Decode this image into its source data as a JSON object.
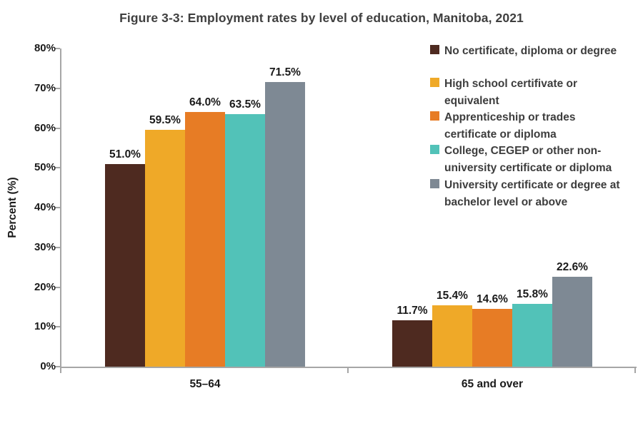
{
  "title": "Figure 3-3: Employment rates by level of education, Manitoba, 2021",
  "chart_data": {
    "type": "bar",
    "title": "Figure 3-3: Employment rates by level of education, Manitoba, 2021",
    "categories": [
      "55–64",
      "65 and over"
    ],
    "series": [
      {
        "name": "No certificate, diploma or degree",
        "legend_lines": [
          "No certificate, diploma or degree"
        ],
        "color": "#4e2a20",
        "values": [
          51.0,
          11.7
        ],
        "value_labels": [
          "51.0%",
          "11.7%"
        ]
      },
      {
        "name": "High school certifivate or equivalent",
        "legend_lines": [
          "High school certifivate or",
          "equivalent"
        ],
        "color": "#efa928",
        "values": [
          59.5,
          15.4
        ],
        "value_labels": [
          "59.5%",
          "15.4%"
        ]
      },
      {
        "name": "Apprenticeship or trades certificate or diploma",
        "legend_lines": [
          "Apprenticeship or trades",
          "certificate or diploma"
        ],
        "color": "#e77c25",
        "values": [
          64.0,
          14.6
        ],
        "value_labels": [
          "64.0%",
          "14.6%"
        ]
      },
      {
        "name": "College, CEGEP or other non-university certificate or diploma",
        "legend_lines": [
          "College, CEGEP or other non-",
          "university certificate or diploma"
        ],
        "color": "#52c2b8",
        "values": [
          63.5,
          15.8
        ],
        "value_labels": [
          "63.5%",
          "15.8%"
        ]
      },
      {
        "name": "University certificate or degree at bachelor level or above",
        "legend_lines": [
          "University certificate or degree at",
          "bachelor level or above"
        ],
        "color": "#7e8994",
        "values": [
          71.5,
          22.6
        ],
        "value_labels": [
          "71.5%",
          "22.6%"
        ]
      }
    ],
    "xlabel": "",
    "ylabel": "Percent (%)",
    "ylim": [
      0,
      80
    ],
    "ytick_labels": [
      "0%",
      "10%",
      "20%",
      "30%",
      "40%",
      "50%",
      "60%",
      "70%",
      "80%"
    ],
    "grid": false,
    "legend_position": "right",
    "axis_color": "#a6a6a6",
    "background_color": "#ffffff"
  }
}
